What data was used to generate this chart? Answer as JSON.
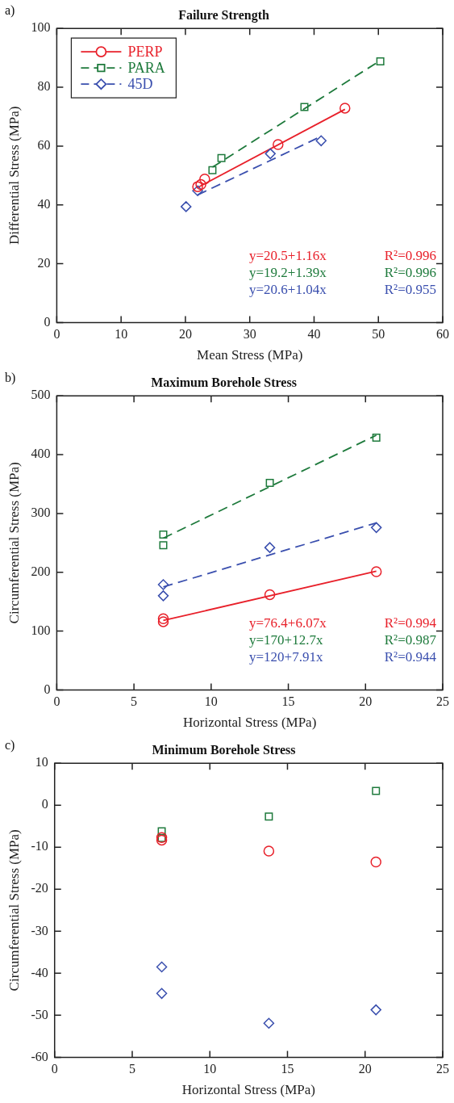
{
  "chart_data": [
    {
      "type": "scatter",
      "title": "Failure Strength",
      "xlabel": "Mean Stress (MPa)",
      "ylabel": "Differential Stress (MPa)",
      "xlim": [
        0,
        60
      ],
      "xticks": [
        0,
        10,
        20,
        30,
        40,
        50,
        60
      ],
      "ylim": [
        0,
        100
      ],
      "yticks": [
        0,
        20,
        40,
        60,
        80,
        100
      ],
      "legend": "top left",
      "grid": false,
      "annotations": [
        "a)",
        "y=20.5+1.16x",
        "R²=0.996",
        "y=19.2+1.39x",
        "R²=0.996",
        "y=20.6+1.04x",
        "R²=0.955"
      ],
      "series": [
        {
          "name": "PERP",
          "color": "#e8202a",
          "marker": "circle",
          "line_style": "solid",
          "x": [
            21.9,
            22.4,
            23.0,
            34.4,
            44.8
          ],
          "values": [
            46.2,
            46.9,
            48.8,
            60.5,
            72.9
          ]
        },
        {
          "name": "PARA",
          "color": "#1e7a3c",
          "marker": "square",
          "line_style": "dashed",
          "x": [
            24.2,
            25.6,
            38.5,
            50.3
          ],
          "values": [
            51.8,
            55.9,
            73.3,
            88.8
          ]
        },
        {
          "name": "45D",
          "color": "#3a4fae",
          "marker": "diamond",
          "line_style": "dashed",
          "x": [
            20.1,
            21.9,
            33.2,
            41.1
          ],
          "values": [
            39.4,
            44.8,
            57.4,
            61.8
          ]
        },
        {
          "type": "line",
          "color": "#e8202a",
          "marker": "none",
          "line_style": "solid",
          "x": [
            21.9,
            44.8
          ],
          "values": [
            45.9,
            72.5
          ]
        },
        {
          "type": "line",
          "color": "#1e7a3c",
          "marker": "none",
          "line_style": "dashed",
          "x": [
            24.2,
            50.3
          ],
          "values": [
            52.8,
            89.1
          ]
        },
        {
          "type": "line",
          "color": "#3a4fae",
          "marker": "none",
          "line_style": "dashed",
          "x": [
            21.9,
            41.1
          ],
          "values": [
            43.4,
            63.3
          ]
        }
      ]
    },
    {
      "type": "scatter",
      "title": "Maximum Borehole Stress",
      "xlabel": "Horizontal Stress (MPa)",
      "ylabel": "Circumferential Stress (MPa)",
      "xlim": [
        0,
        25
      ],
      "xticks": [
        0,
        5,
        10,
        15,
        20,
        25
      ],
      "ylim": [
        0,
        500
      ],
      "yticks": [
        0,
        100,
        200,
        300,
        400,
        500
      ],
      "grid": false,
      "annotations": [
        "b)",
        "y=76.4+6.07x",
        "R²=0.994",
        "y=170+12.7x",
        "R²=0.987",
        "y=120+7.91x",
        "R²=0.944"
      ],
      "series": [
        {
          "color": "#e8202a",
          "marker": "circle",
          "x": [
            6.9,
            6.9,
            13.8,
            20.7
          ],
          "values": [
            121,
            116,
            162,
            201
          ]
        },
        {
          "color": "#1e7a3c",
          "marker": "square",
          "x": [
            6.9,
            6.9,
            13.8,
            20.7
          ],
          "values": [
            264,
            246,
            352,
            429
          ]
        },
        {
          "color": "#3a4fae",
          "marker": "diamond",
          "x": [
            6.9,
            6.9,
            13.8,
            20.7
          ],
          "values": [
            179,
            160,
            242,
            276
          ]
        },
        {
          "type": "line",
          "color": "#e8202a",
          "marker": "none",
          "line_style": "solid",
          "x": [
            6.9,
            20.7
          ],
          "values": [
            118,
            202
          ]
        },
        {
          "type": "line",
          "color": "#1e7a3c",
          "marker": "none",
          "line_style": "dashed",
          "x": [
            6.9,
            20.7
          ],
          "values": [
            258,
            433
          ]
        },
        {
          "type": "line",
          "color": "#3a4fae",
          "marker": "none",
          "line_style": "dashed",
          "x": [
            6.9,
            20.7
          ],
          "values": [
            175,
            284
          ]
        }
      ]
    },
    {
      "type": "scatter",
      "title": "Minimum Borehole Stress",
      "xlabel": "Horizontal Stress (MPa)",
      "ylabel": "Circumferential Stress (MPa)",
      "xlim": [
        0,
        25
      ],
      "xticks": [
        0,
        5,
        10,
        15,
        20,
        25
      ],
      "ylim": [
        -60,
        10
      ],
      "yticks": [
        -60,
        -50,
        -40,
        -30,
        -20,
        -10,
        0,
        10
      ],
      "grid": false,
      "annotations": [
        "c)"
      ],
      "series": [
        {
          "color": "#e8202a",
          "marker": "circle",
          "x": [
            6.9,
            6.9,
            13.8,
            20.7
          ],
          "values": [
            -8.3,
            -7.7,
            -10.9,
            -13.5
          ]
        },
        {
          "color": "#1e7a3c",
          "marker": "square",
          "x": [
            6.9,
            6.9,
            13.8,
            20.7
          ],
          "values": [
            -6.2,
            -7.8,
            -2.7,
            3.4
          ]
        },
        {
          "color": "#3a4fae",
          "marker": "diamond",
          "x": [
            6.9,
            6.9,
            13.8,
            20.7
          ],
          "values": [
            -38.5,
            -44.8,
            -51.9,
            -48.7
          ]
        }
      ]
    }
  ]
}
